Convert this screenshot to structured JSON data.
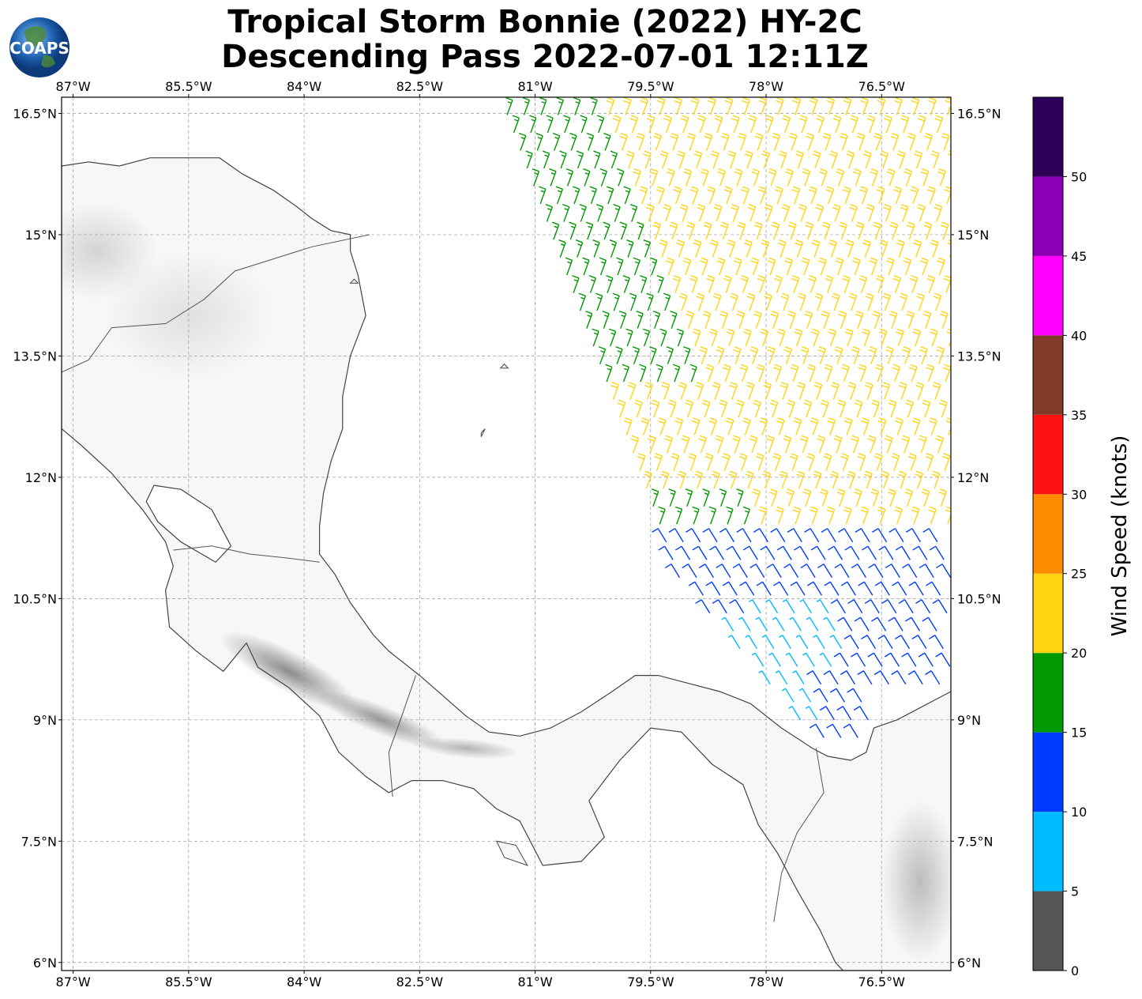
{
  "title": {
    "line1": "Tropical Storm Bonnie (2022) HY-2C",
    "line2": "Descending Pass 2022-07-01 12:11Z"
  },
  "logo": {
    "text": "COAPS"
  },
  "map": {
    "lon_range": [
      -87.15,
      -75.6
    ],
    "lat_range": [
      5.9,
      16.7
    ],
    "lon_ticks": [
      {
        "value": -87.0,
        "label": "87°W"
      },
      {
        "value": -85.5,
        "label": "85.5°W"
      },
      {
        "value": -84.0,
        "label": "84°W"
      },
      {
        "value": -82.5,
        "label": "82.5°W"
      },
      {
        "value": -81.0,
        "label": "81°W"
      },
      {
        "value": -79.5,
        "label": "79.5°W"
      },
      {
        "value": -78.0,
        "label": "78°W"
      },
      {
        "value": -76.5,
        "label": "76.5°W"
      }
    ],
    "lat_ticks": [
      {
        "value": 16.5,
        "label": "16.5°N"
      },
      {
        "value": 15.0,
        "label": "15°N"
      },
      {
        "value": 13.5,
        "label": "13.5°N"
      },
      {
        "value": 12.0,
        "label": "12°N"
      },
      {
        "value": 10.5,
        "label": "10.5°N"
      },
      {
        "value": 9.0,
        "label": "9°N"
      },
      {
        "value": 7.5,
        "label": "7.5°N"
      },
      {
        "value": 6.0,
        "label": "6°N"
      }
    ],
    "coastline": [
      [
        -87.15,
        15.85
      ],
      [
        -86.8,
        15.9
      ],
      [
        -86.4,
        15.85
      ],
      [
        -86.0,
        15.95
      ],
      [
        -85.6,
        15.95
      ],
      [
        -85.1,
        15.95
      ],
      [
        -84.8,
        15.75
      ],
      [
        -84.4,
        15.55
      ],
      [
        -84.1,
        15.35
      ],
      [
        -83.9,
        15.2
      ],
      [
        -83.65,
        15.05
      ],
      [
        -83.4,
        15.0
      ],
      [
        -83.4,
        14.8
      ],
      [
        -83.3,
        14.5
      ],
      [
        -83.2,
        14.0
      ],
      [
        -83.4,
        13.5
      ],
      [
        -83.5,
        13.0
      ],
      [
        -83.5,
        12.6
      ],
      [
        -83.65,
        12.2
      ],
      [
        -83.75,
        11.8
      ],
      [
        -83.8,
        11.4
      ],
      [
        -83.8,
        11.05
      ],
      [
        -83.6,
        10.8
      ],
      [
        -83.4,
        10.45
      ],
      [
        -83.1,
        10.05
      ],
      [
        -82.9,
        9.85
      ],
      [
        -82.5,
        9.55
      ],
      [
        -82.2,
        9.3
      ],
      [
        -81.9,
        9.05
      ],
      [
        -81.6,
        8.85
      ],
      [
        -81.2,
        8.8
      ],
      [
        -80.8,
        8.9
      ],
      [
        -80.4,
        9.1
      ],
      [
        -80.0,
        9.35
      ],
      [
        -79.7,
        9.55
      ],
      [
        -79.4,
        9.55
      ],
      [
        -79.0,
        9.45
      ],
      [
        -78.6,
        9.35
      ],
      [
        -78.2,
        9.2
      ],
      [
        -77.8,
        8.9
      ],
      [
        -77.4,
        8.65
      ],
      [
        -77.2,
        8.55
      ],
      [
        -76.9,
        8.5
      ],
      [
        -76.7,
        8.6
      ],
      [
        -76.6,
        8.9
      ],
      [
        -76.3,
        9.0
      ],
      [
        -75.6,
        9.35
      ]
    ],
    "pacific_coast": [
      [
        -87.15,
        12.6
      ],
      [
        -86.9,
        12.4
      ],
      [
        -86.5,
        12.05
      ],
      [
        -86.1,
        11.6
      ],
      [
        -85.8,
        11.2
      ],
      [
        -85.7,
        10.9
      ],
      [
        -85.8,
        10.6
      ],
      [
        -85.75,
        10.15
      ],
      [
        -85.4,
        9.85
      ],
      [
        -85.05,
        9.6
      ],
      [
        -84.75,
        9.95
      ],
      [
        -84.6,
        9.65
      ],
      [
        -84.2,
        9.4
      ],
      [
        -83.8,
        9.05
      ],
      [
        -83.55,
        8.6
      ],
      [
        -83.2,
        8.3
      ],
      [
        -82.9,
        8.1
      ],
      [
        -82.6,
        8.25
      ],
      [
        -82.2,
        8.25
      ],
      [
        -81.8,
        8.15
      ],
      [
        -81.5,
        7.9
      ],
      [
        -81.2,
        7.75
      ],
      [
        -80.9,
        7.2
      ],
      [
        -80.4,
        7.25
      ],
      [
        -80.1,
        7.55
      ],
      [
        -80.3,
        8.0
      ],
      [
        -79.9,
        8.5
      ],
      [
        -79.5,
        8.9
      ],
      [
        -79.1,
        8.85
      ],
      [
        -78.7,
        8.45
      ],
      [
        -78.3,
        8.2
      ],
      [
        -78.1,
        7.7
      ],
      [
        -77.85,
        7.35
      ],
      [
        -77.6,
        6.9
      ],
      [
        -77.3,
        6.4
      ],
      [
        -77.1,
        6.0
      ],
      [
        -77.0,
        5.9
      ]
    ],
    "lake": [
      [
        -85.95,
        11.9
      ],
      [
        -85.6,
        11.85
      ],
      [
        -85.2,
        11.6
      ],
      [
        -84.95,
        11.15
      ],
      [
        -85.15,
        10.95
      ],
      [
        -85.6,
        11.2
      ],
      [
        -85.9,
        11.45
      ],
      [
        -86.05,
        11.7
      ],
      [
        -85.95,
        11.9
      ]
    ],
    "borders": [
      [
        [
          -83.15,
          15.0
        ],
        [
          -83.9,
          14.85
        ],
        [
          -84.4,
          14.7
        ],
        [
          -84.9,
          14.55
        ],
        [
          -85.3,
          14.2
        ],
        [
          -85.8,
          13.9
        ],
        [
          -86.5,
          13.85
        ],
        [
          -86.8,
          13.45
        ],
        [
          -87.15,
          13.3
        ]
      ],
      [
        [
          -83.8,
          10.95
        ],
        [
          -84.2,
          11.0
        ],
        [
          -84.7,
          11.05
        ],
        [
          -85.2,
          11.15
        ],
        [
          -85.7,
          11.1
        ]
      ],
      [
        [
          -82.55,
          9.55
        ],
        [
          -82.75,
          9.0
        ],
        [
          -82.9,
          8.6
        ],
        [
          -82.85,
          8.05
        ]
      ],
      [
        [
          -77.35,
          8.65
        ],
        [
          -77.25,
          8.1
        ],
        [
          -77.6,
          7.6
        ],
        [
          -77.8,
          7.1
        ],
        [
          -77.9,
          6.5
        ]
      ]
    ],
    "islands": [
      [
        [
          -81.45,
          13.35
        ],
        [
          -81.4,
          13.4
        ],
        [
          -81.35,
          13.35
        ],
        [
          -81.45,
          13.35
        ]
      ],
      [
        [
          -81.7,
          12.55
        ],
        [
          -81.65,
          12.6
        ],
        [
          -81.7,
          12.5
        ],
        [
          -81.7,
          12.55
        ]
      ],
      [
        [
          -83.4,
          14.4
        ],
        [
          -83.35,
          14.45
        ],
        [
          -83.3,
          14.4
        ],
        [
          -83.4,
          14.4
        ]
      ],
      [
        [
          -81.5,
          7.5
        ],
        [
          -81.25,
          7.45
        ],
        [
          -81.1,
          7.2
        ],
        [
          -81.4,
          7.3
        ],
        [
          -81.5,
          7.5
        ]
      ]
    ],
    "terrain_ridges": [
      {
        "lon": -84.2,
        "lat": 9.6,
        "rx": 1.0,
        "ry": 0.25,
        "rot": 28,
        "dark": 0.55
      },
      {
        "lon": -83.0,
        "lat": 9.0,
        "rx": 0.9,
        "ry": 0.18,
        "rot": 22,
        "dark": 0.5
      },
      {
        "lon": -81.9,
        "lat": 8.65,
        "rx": 0.7,
        "ry": 0.12,
        "rot": 5,
        "dark": 0.35
      },
      {
        "lon": -86.7,
        "lat": 14.8,
        "rx": 0.8,
        "ry": 0.6,
        "rot": 0,
        "dark": 0.18
      },
      {
        "lon": -85.5,
        "lat": 14.0,
        "rx": 1.1,
        "ry": 0.8,
        "rot": 0,
        "dark": 0.12
      },
      {
        "lon": -76.0,
        "lat": 7.0,
        "rx": 0.5,
        "ry": 1.0,
        "rot": 0,
        "dark": 0.3
      }
    ]
  },
  "colorbar": {
    "label": "Wind Speed (knots)",
    "bins": [
      {
        "min": 0,
        "max": 5,
        "color": "#555555"
      },
      {
        "min": 5,
        "max": 10,
        "color": "#00bbff"
      },
      {
        "min": 10,
        "max": 15,
        "color": "#003cff"
      },
      {
        "min": 15,
        "max": 20,
        "color": "#009900"
      },
      {
        "min": 20,
        "max": 25,
        "color": "#ffd412"
      },
      {
        "min": 25,
        "max": 30,
        "color": "#ff8c00"
      },
      {
        "min": 30,
        "max": 35,
        "color": "#ff1111"
      },
      {
        "min": 35,
        "max": 40,
        "color": "#7f3b28"
      },
      {
        "min": 40,
        "max": 45,
        "color": "#ff00ff"
      },
      {
        "min": 45,
        "max": 50,
        "color": "#8b00b7"
      },
      {
        "min": 50,
        "max": 55,
        "color": "#2e0058"
      }
    ],
    "ticks": [
      "0",
      "5",
      "10",
      "15",
      "20",
      "25",
      "30",
      "35",
      "40",
      "45",
      "50"
    ],
    "range": [
      0,
      55
    ]
  },
  "wind_field": {
    "swath": {
      "north_lat": 16.7,
      "north_lon_west": -81.45,
      "south_lat_west": 10.7,
      "south_lon_west": -79.1,
      "east_lon": -75.6,
      "south_lat_max": 8.7
    },
    "zones": [
      {
        "region": "northwest edge",
        "speed_kt": 17
      },
      {
        "region": "north and central",
        "speed_kt": 22
      },
      {
        "region": "south-central",
        "speed_kt": 13
      },
      {
        "region": "southern core",
        "speed_kt": 8
      }
    ],
    "prevailing_direction_deg": 70
  }
}
